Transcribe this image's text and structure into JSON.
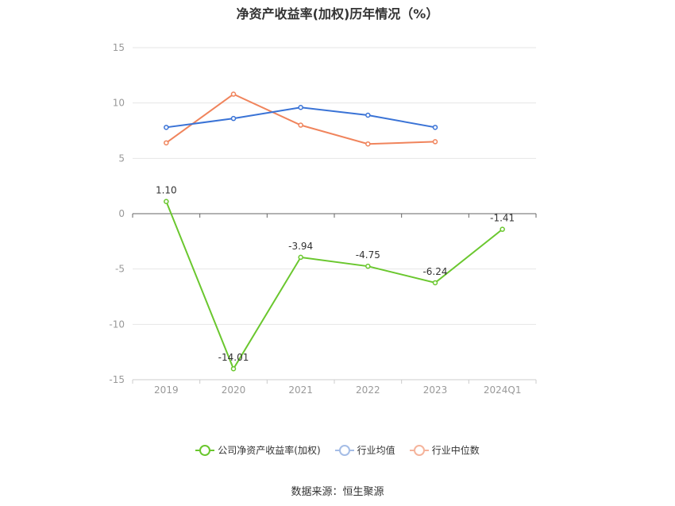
{
  "chart_data": {
    "type": "line",
    "title": "净资产收益率(加权)历年情况（%）",
    "categories": [
      "2019",
      "2020",
      "2021",
      "2022",
      "2023",
      "2024Q1"
    ],
    "ylim": [
      -15,
      15
    ],
    "yticks": [
      15,
      10,
      5,
      0,
      -5,
      -10,
      -15
    ],
    "grid": true,
    "legend_position": "bottom",
    "series": [
      {
        "name": "公司净资产收益率(加权)",
        "color": "#6ac72e",
        "values": [
          1.1,
          -14.01,
          -3.94,
          -4.75,
          -6.24,
          -1.41
        ],
        "labels": [
          "1.10",
          "-14.01",
          "-3.94",
          "-4.75",
          "-6.24",
          "-1.41"
        ]
      },
      {
        "name": "行业均值",
        "color": "#3a73d6",
        "values": [
          7.8,
          8.6,
          9.6,
          8.9,
          7.8,
          null
        ]
      },
      {
        "name": "行业中位数",
        "color": "#f0845c",
        "values": [
          6.4,
          10.8,
          8.0,
          6.3,
          6.5,
          null
        ]
      }
    ]
  },
  "legend": {
    "items": [
      {
        "label": "公司净资产收益率(加权)",
        "color": "#6ac72e"
      },
      {
        "label": "行业均值",
        "color": "#a5bde6"
      },
      {
        "label": "行业中位数",
        "color": "#f5b49c"
      }
    ]
  },
  "source": "数据来源：恒生聚源"
}
